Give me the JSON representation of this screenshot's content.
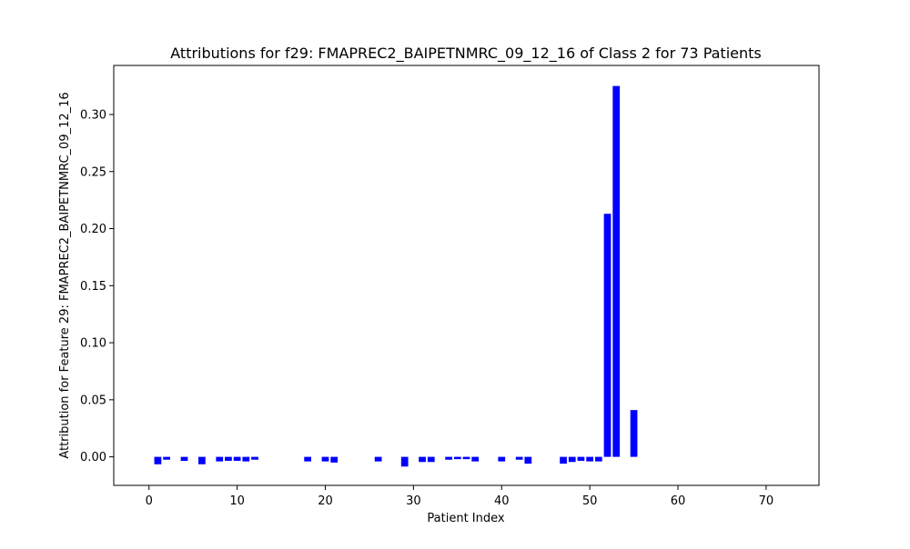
{
  "chart_data": {
    "type": "bar",
    "title": "Attributions for f29: FMAPREC2_BAIPETNMRC_09_12_16 of Class 2 for 73 Patients",
    "xlabel": "Patient Index",
    "ylabel": "Attribution for Feature 29: FMAPREC2_BAIPETNMRC_09_12_16",
    "xlim": [
      -4,
      76
    ],
    "ylim": [
      -0.025,
      0.343
    ],
    "xticks": [
      0,
      10,
      20,
      30,
      40,
      50,
      60,
      70
    ],
    "xtick_labels": [
      "0",
      "10",
      "20",
      "30",
      "40",
      "50",
      "60",
      "70"
    ],
    "yticks": [
      0.0,
      0.05,
      0.1,
      0.15,
      0.2,
      0.25,
      0.3
    ],
    "ytick_labels": [
      "0.00",
      "0.05",
      "0.10",
      "0.15",
      "0.20",
      "0.25",
      "0.30"
    ],
    "grid": false,
    "legend": "none",
    "bar_color": "#0000ff",
    "x": [
      0,
      1,
      2,
      3,
      4,
      5,
      6,
      7,
      8,
      9,
      10,
      11,
      12,
      13,
      14,
      15,
      16,
      17,
      18,
      19,
      20,
      21,
      22,
      23,
      24,
      25,
      26,
      27,
      28,
      29,
      30,
      31,
      32,
      33,
      34,
      35,
      36,
      37,
      38,
      39,
      40,
      41,
      42,
      43,
      44,
      45,
      46,
      47,
      48,
      49,
      50,
      51,
      52,
      53,
      54,
      55,
      56,
      57,
      58,
      59,
      60,
      61,
      62,
      63,
      64,
      65,
      66,
      67,
      68,
      69,
      70,
      71,
      72
    ],
    "values": [
      0,
      -0.0065,
      -0.0025,
      0,
      -0.0035,
      0,
      -0.0065,
      0,
      -0.004,
      -0.0035,
      -0.0035,
      -0.004,
      -0.0025,
      0,
      0,
      0,
      0,
      0,
      -0.004,
      0,
      -0.004,
      -0.005,
      0,
      0,
      0,
      0,
      -0.004,
      0,
      0,
      -0.0085,
      0,
      -0.0045,
      -0.0045,
      0,
      -0.0025,
      -0.002,
      -0.002,
      -0.004,
      0,
      0,
      -0.004,
      0,
      -0.0025,
      -0.006,
      0,
      0,
      0,
      -0.006,
      -0.0045,
      -0.0035,
      -0.004,
      -0.004,
      0.213,
      0.325,
      0,
      0.041,
      0,
      0,
      0,
      0,
      0,
      0,
      0,
      0,
      0,
      0,
      0,
      0,
      0,
      0,
      0,
      0,
      0
    ]
  }
}
